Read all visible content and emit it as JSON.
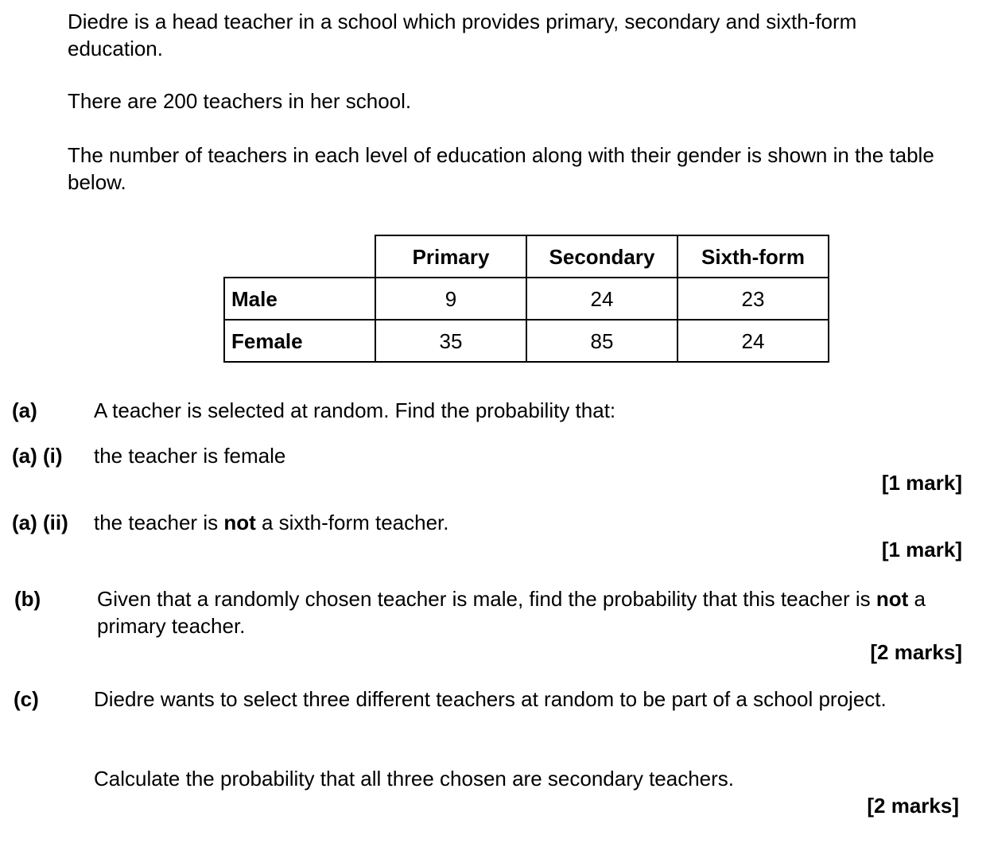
{
  "intro": {
    "p1": "Diedre is a head teacher in a school which provides primary, secondary and sixth-form education.",
    "p2": "There are 200 teachers in her school.",
    "p3": "The number of teachers in each level of education along with their gender is shown in the table below."
  },
  "table": {
    "headers": [
      "Primary",
      "Secondary",
      "Sixth-form"
    ],
    "rows": [
      {
        "label": "Male",
        "values": [
          "9",
          "24",
          "23"
        ]
      },
      {
        "label": "Female",
        "values": [
          "35",
          "85",
          "24"
        ]
      }
    ]
  },
  "questions": {
    "a": {
      "label": "(a)",
      "text": "A teacher is selected at random.  Find the probability that:"
    },
    "a_i": {
      "label": "(a) (i)",
      "text": "the teacher is female",
      "marks": "[1 mark]"
    },
    "a_ii": {
      "label": "(a) (ii)",
      "text_before": "the teacher is ",
      "text_bold": "not",
      "text_after": " a sixth-form teacher.",
      "marks": "[1 mark]"
    },
    "b": {
      "label": "(b)",
      "text_before": "Given that a randomly chosen teacher is male, find the probability that this teacher is ",
      "text_bold": "not",
      "text_after": " a primary teacher.",
      "marks": "[2 marks]"
    },
    "c": {
      "label": "(c)",
      "text": "Diedre wants to select three different teachers at random to be part of a school project.",
      "text2": "Calculate the probability that all three chosen are secondary teachers.",
      "marks": "[2 marks]"
    }
  }
}
